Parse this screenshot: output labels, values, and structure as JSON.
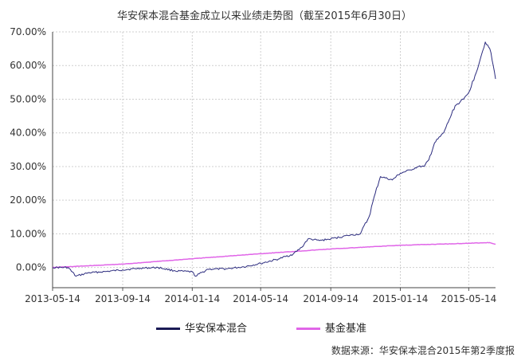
{
  "chart_data": {
    "type": "line",
    "title": "华安保本混合基金成立以来业绩走势图（截至2015年6月30日）",
    "x_ticks": [
      "2013-05-14",
      "2013-09-14",
      "2014-01-14",
      "2014-05-14",
      "2014-09-14",
      "2015-01-14",
      "2015-05-14"
    ],
    "x_range": [
      "2013-05-14",
      "2015-06-30"
    ],
    "ylim": [
      -0.06,
      0.7
    ],
    "y_ticks": [
      0.0,
      0.1,
      0.2,
      0.3,
      0.4,
      0.5,
      0.6,
      0.7
    ],
    "y_tick_labels": [
      "0.00%",
      "10.00%",
      "20.00%",
      "30.00%",
      "40.00%",
      "50.00%",
      "60.00%",
      "70.00%"
    ],
    "grid": true,
    "legend_position": "bottom",
    "series": [
      {
        "name": "华安保本混合",
        "color": "#2b2b7e",
        "points": [
          [
            "2013-05-14",
            0.0
          ],
          [
            "2013-06-10",
            0.0
          ],
          [
            "2013-06-24",
            -0.026
          ],
          [
            "2013-07-15",
            -0.016
          ],
          [
            "2013-08-15",
            -0.012
          ],
          [
            "2013-09-14",
            -0.007
          ],
          [
            "2013-10-15",
            -0.002
          ],
          [
            "2013-11-15",
            0.0
          ],
          [
            "2013-12-15",
            -0.01
          ],
          [
            "2014-01-14",
            -0.013
          ],
          [
            "2014-01-20",
            -0.026
          ],
          [
            "2014-02-10",
            -0.005
          ],
          [
            "2014-03-14",
            -0.004
          ],
          [
            "2014-04-14",
            0.002
          ],
          [
            "2014-05-14",
            0.012
          ],
          [
            "2014-06-14",
            0.025
          ],
          [
            "2014-07-10",
            0.04
          ],
          [
            "2014-07-25",
            0.06
          ],
          [
            "2014-08-05",
            0.085
          ],
          [
            "2014-08-25",
            0.08
          ],
          [
            "2014-09-14",
            0.085
          ],
          [
            "2014-10-14",
            0.095
          ],
          [
            "2014-11-05",
            0.1
          ],
          [
            "2014-11-20",
            0.15
          ],
          [
            "2014-12-01",
            0.22
          ],
          [
            "2014-12-10",
            0.27
          ],
          [
            "2014-12-31",
            0.26
          ],
          [
            "2015-01-14",
            0.28
          ],
          [
            "2015-02-01",
            0.29
          ],
          [
            "2015-02-15",
            0.3
          ],
          [
            "2015-02-25",
            0.3
          ],
          [
            "2015-03-05",
            0.32
          ],
          [
            "2015-03-15",
            0.37
          ],
          [
            "2015-03-31",
            0.4
          ],
          [
            "2015-04-10",
            0.44
          ],
          [
            "2015-04-20",
            0.48
          ],
          [
            "2015-05-05",
            0.5
          ],
          [
            "2015-05-14",
            0.52
          ],
          [
            "2015-05-25",
            0.57
          ],
          [
            "2015-06-05",
            0.63
          ],
          [
            "2015-06-12",
            0.67
          ],
          [
            "2015-06-20",
            0.65
          ],
          [
            "2015-06-26",
            0.6
          ],
          [
            "2015-06-30",
            0.56
          ]
        ]
      },
      {
        "name": "基金基准",
        "color": "#e066e8",
        "points": [
          [
            "2013-05-14",
            0.0
          ],
          [
            "2013-09-14",
            0.01
          ],
          [
            "2014-01-14",
            0.026
          ],
          [
            "2014-05-14",
            0.041
          ],
          [
            "2014-09-14",
            0.055
          ],
          [
            "2015-01-14",
            0.066
          ],
          [
            "2015-05-14",
            0.072
          ],
          [
            "2015-06-20",
            0.074
          ],
          [
            "2015-06-30",
            0.069
          ]
        ]
      }
    ]
  },
  "legend": {
    "fund": "华安保本混合",
    "benchmark": "基金基准"
  },
  "source": "数据来源：华安保本混合2015年第2季度报"
}
